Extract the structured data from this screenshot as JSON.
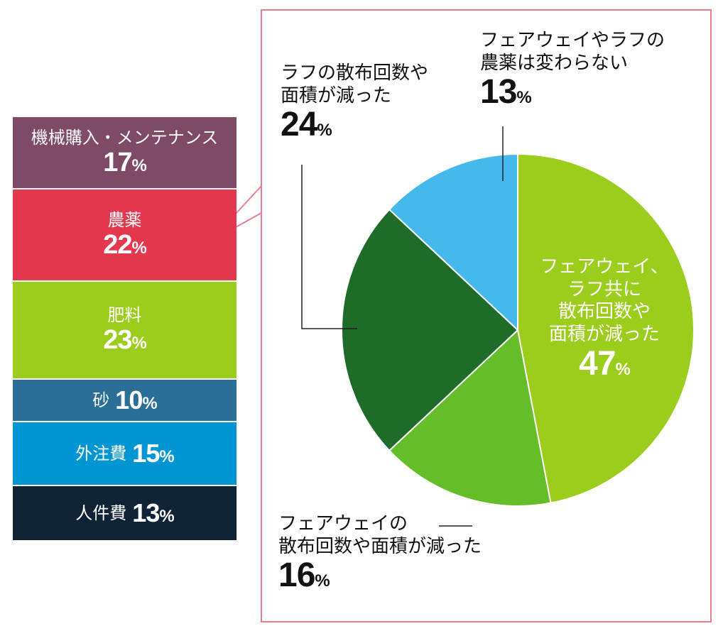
{
  "breakdown": [
    {
      "label": "機械購入・メンテナンス",
      "value": 17,
      "unit": "%",
      "color": "#7e4a65"
    },
    {
      "label": "農薬",
      "value": 22,
      "unit": "%",
      "color": "#e4384e"
    },
    {
      "label": "肥料",
      "value": 23,
      "unit": "%",
      "color": "#9ccc1c"
    },
    {
      "label": "砂",
      "value": 10,
      "unit": "%",
      "color": "#2b6e96"
    },
    {
      "label": "外注費",
      "value": 15,
      "unit": "%",
      "color": "#0096d4"
    },
    {
      "label": "人件費",
      "value": 13,
      "unit": "%",
      "color": "#0f2236"
    }
  ],
  "callout_border_color": "#e77f8f",
  "chart_data": {
    "type": "pie",
    "categories": [
      "フェアウェイ、ラフ共に散布回数や面積が減った",
      "フェアウェイの散布回数や面積が減った",
      "ラフの散布回数や面積が減った",
      "フェアウェイやラフの農薬は変わらない"
    ],
    "values": [
      47,
      16,
      24,
      13
    ],
    "unit": "%",
    "colors": [
      "#9ccc1c",
      "#66bd2a",
      "#1e6b2a",
      "#45b8ec"
    ],
    "labels": [
      {
        "line1": "フェアウェイ、",
        "line2": "ラフ共に",
        "line3": "散布回数や",
        "line4": "面積が減った",
        "value": "47",
        "unit": "%"
      },
      {
        "line1": "フェアウェイの",
        "line2": "散布回数や面積が減った",
        "value": "16",
        "unit": "%"
      },
      {
        "line1": "ラフの散布回数や",
        "line2": "面積が減った",
        "value": "24",
        "unit": "%"
      },
      {
        "line1": "フェアウェイやラフの",
        "line2": "農薬は変わらない",
        "value": "13",
        "unit": "%"
      }
    ]
  }
}
